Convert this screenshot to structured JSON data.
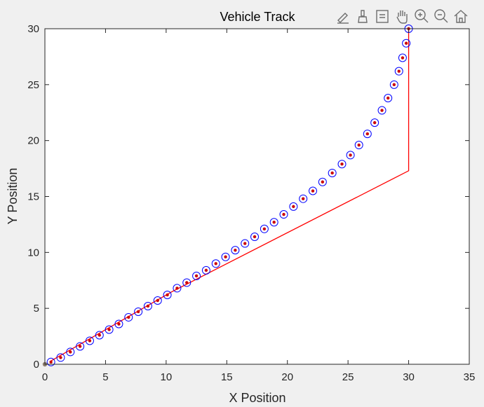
{
  "chart_data": {
    "type": "line",
    "title": "Vehicle Track",
    "xlabel": "X Position",
    "ylabel": "Y Position",
    "xlim": [
      0,
      35
    ],
    "ylim": [
      0,
      30
    ],
    "xticks": [
      0,
      5,
      10,
      15,
      20,
      25,
      30,
      35
    ],
    "yticks": [
      0,
      5,
      10,
      15,
      20,
      25,
      30
    ],
    "grid": false,
    "legend": "none",
    "series": [
      {
        "style": "red line",
        "color": "#ff0000",
        "x": [
          0.5,
          10.5,
          30.0,
          30.0
        ],
        "y": [
          0.3,
          6.5,
          17.3,
          30.0
        ]
      },
      {
        "style": "blue circles (track points)",
        "color": "#0000ff",
        "x": [
          0.5,
          1.3,
          2.1,
          2.9,
          3.7,
          4.5,
          5.3,
          6.1,
          6.9,
          7.7,
          8.5,
          9.3,
          10.1,
          10.9,
          11.7,
          12.5,
          13.3,
          14.1,
          14.9,
          15.7,
          16.5,
          17.3,
          18.1,
          18.9,
          19.7,
          20.5,
          21.3,
          22.1,
          22.9,
          23.7,
          24.5,
          25.2,
          25.9,
          26.6,
          27.2,
          27.8,
          28.3,
          28.8,
          29.2,
          29.5,
          29.8,
          30.0
        ],
        "y": [
          0.2,
          0.6,
          1.1,
          1.6,
          2.1,
          2.6,
          3.1,
          3.6,
          4.2,
          4.7,
          5.2,
          5.7,
          6.2,
          6.8,
          7.3,
          7.9,
          8.4,
          9.0,
          9.6,
          10.2,
          10.8,
          11.4,
          12.1,
          12.7,
          13.4,
          14.1,
          14.8,
          15.5,
          16.3,
          17.1,
          17.9,
          18.7,
          19.6,
          20.6,
          21.6,
          22.7,
          23.8,
          25.0,
          26.2,
          27.4,
          28.7,
          30.0
        ]
      },
      {
        "style": "red dots",
        "color": "#cc0000",
        "x": [
          0.5,
          1.3,
          2.1,
          2.9,
          3.7,
          4.5,
          5.3,
          6.1,
          6.9,
          7.7,
          8.5,
          9.3,
          10.1,
          10.9,
          11.7,
          12.5,
          13.3,
          14.1,
          14.9,
          15.7,
          16.5,
          17.3,
          18.1,
          18.9,
          19.7,
          20.5,
          21.3,
          22.1,
          22.9,
          23.7,
          24.5,
          25.2,
          25.9,
          26.6,
          27.2,
          27.8,
          28.3,
          28.8,
          29.2,
          29.5,
          29.8,
          30.0
        ],
        "y": [
          0.2,
          0.6,
          1.1,
          1.6,
          2.1,
          2.6,
          3.1,
          3.6,
          4.2,
          4.7,
          5.2,
          5.7,
          6.2,
          6.8,
          7.3,
          7.9,
          8.4,
          9.0,
          9.6,
          10.2,
          10.8,
          11.4,
          12.1,
          12.7,
          13.4,
          14.1,
          14.8,
          15.5,
          16.3,
          17.1,
          17.9,
          18.7,
          19.6,
          20.6,
          21.6,
          22.7,
          23.8,
          25.0,
          26.2,
          27.4,
          28.7,
          30.0
        ]
      },
      {
        "style": "start marker",
        "color": "#8c7d6e",
        "x": [
          0.0
        ],
        "y": [
          0.0
        ]
      }
    ]
  },
  "toolbar": {
    "icons": [
      "edit-plot-icon",
      "brush-icon",
      "data-cursor-icon",
      "pan-icon",
      "zoom-in-icon",
      "zoom-out-icon",
      "home-icon"
    ]
  }
}
